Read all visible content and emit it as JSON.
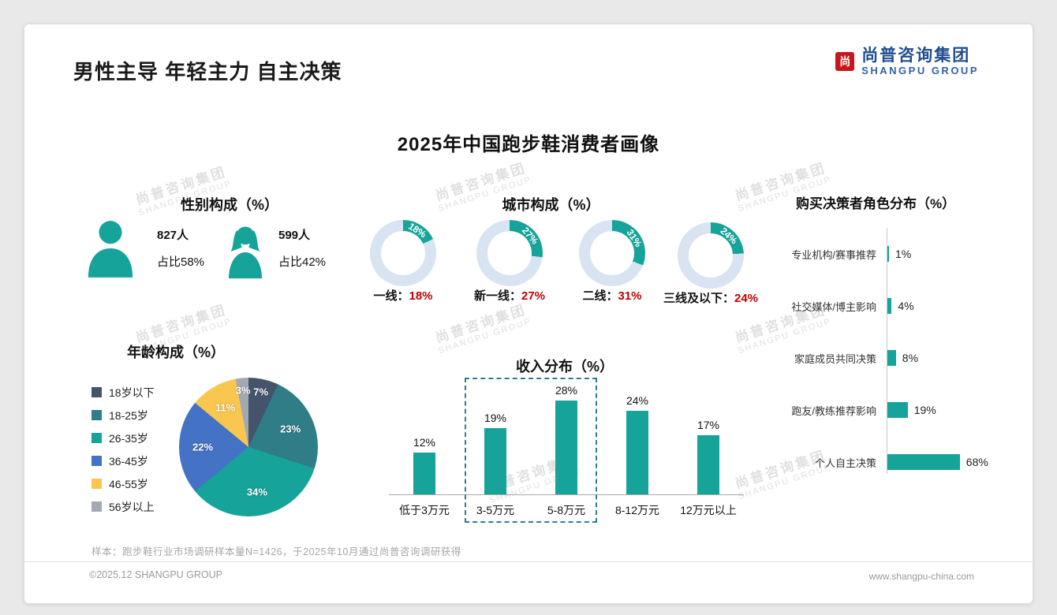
{
  "page": {
    "title": "男性主导 年轻主力 自主决策",
    "subtitle": "2025年中国跑步鞋消费者画像",
    "note": "样本：跑步鞋行业市场调研样本量N=1426，于2025年10月通过尚普咨询调研获得",
    "footer_left": "©2025.12 SHANGPU GROUP",
    "footer_right": "www.shangpu-china.com"
  },
  "logo": {
    "mark": "尚",
    "name_cn": "尚普咨询集团",
    "name_en": "SHANGPU GROUP"
  },
  "watermark": {
    "line1": "尚普咨询集团",
    "line2": "SHANGPU GROUP"
  },
  "colors": {
    "teal": "#15A39A",
    "red": "#C00000",
    "logo_red": "#C8161D",
    "logo_navy": "#1F4E8F",
    "logo_blue": "#2F62A8",
    "highlight_box": "#2F7D95"
  },
  "chart_data": [
    {
      "type": "pictogram",
      "title": "性别构成（%）",
      "items": [
        {
          "label": "男性",
          "count": 827,
          "count_label": "827人",
          "value": 58,
          "share_label": "占比58%"
        },
        {
          "label": "女性",
          "count": 599,
          "count_label": "599人",
          "value": 42,
          "share_label": "占比42%"
        }
      ]
    },
    {
      "type": "pie",
      "variant": "donut_multiples",
      "title": "城市构成（%）",
      "active_color": "#15A39A",
      "rest_color": "#D8E4F2",
      "items": [
        {
          "label": "一线：",
          "value": 18
        },
        {
          "label": "新一线：",
          "value": 27
        },
        {
          "label": "二线：",
          "value": 31
        },
        {
          "label": "三线及以下：",
          "value": 24
        }
      ]
    },
    {
      "type": "bar",
      "orientation": "horizontal",
      "title": "购买决策者角色分布（%）",
      "bar_color": "#15A39A",
      "xlim": [
        0,
        100
      ],
      "items": [
        {
          "label": "专业机构/赛事推荐",
          "value": 1
        },
        {
          "label": "社交媒体/博主影响",
          "value": 4
        },
        {
          "label": "家庭成员共同决策",
          "value": 8
        },
        {
          "label": "跑友/教练推荐影响",
          "value": 19
        },
        {
          "label": "个人自主决策",
          "value": 68
        }
      ]
    },
    {
      "type": "pie",
      "title": "年龄构成（%）",
      "legend_position": "left",
      "items": [
        {
          "label": "18岁以下",
          "value": 7,
          "color": "#44546A"
        },
        {
          "label": "18-25岁",
          "value": 23,
          "color": "#2E7D87"
        },
        {
          "label": "26-35岁",
          "value": 34,
          "color": "#15A39A"
        },
        {
          "label": "36-45岁",
          "value": 22,
          "color": "#4472C4"
        },
        {
          "label": "46-55岁",
          "value": 11,
          "color": "#F9C74F"
        },
        {
          "label": "56岁以上",
          "value": 3,
          "color": "#A2A9B3"
        }
      ]
    },
    {
      "type": "bar",
      "orientation": "vertical",
      "title": "收入分布（%）",
      "bar_color": "#15A39A",
      "ylim": [
        0,
        30
      ],
      "categories": [
        "低于3万元",
        "3-5万元",
        "5-8万元",
        "8-12万元",
        "12万元以上"
      ],
      "values": [
        12,
        19,
        28,
        24,
        17
      ],
      "highlight": {
        "categories": [
          "3-5万元",
          "5-8万元"
        ],
        "style": "dashed_box"
      }
    }
  ]
}
